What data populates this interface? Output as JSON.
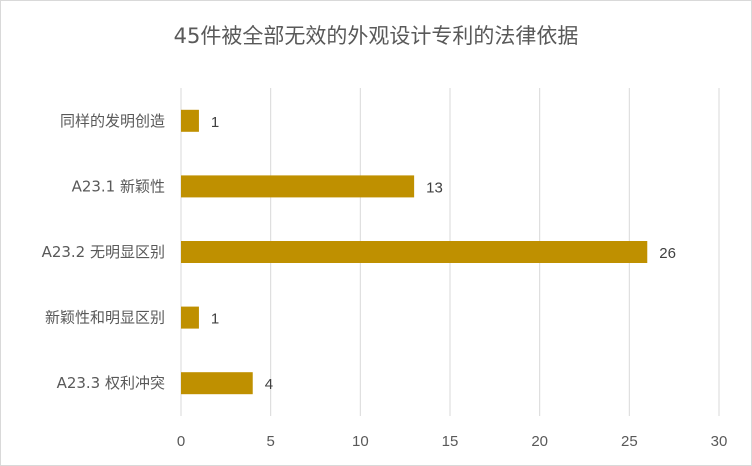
{
  "chart_data": {
    "type": "bar",
    "orientation": "horizontal",
    "title": "45件被全部无效的外观设计专利的法律依据",
    "categories": [
      "同样的发明创造",
      "A23.1 新颖性",
      "A23.2 无明显区别",
      "新颖性和明显区别",
      "A23.3 权利冲突"
    ],
    "values": [
      1,
      13,
      26,
      1,
      4
    ],
    "xlim": [
      0,
      30
    ],
    "xticks": [
      "0",
      "5",
      "10",
      "15",
      "20",
      "25",
      "30"
    ],
    "grid": true,
    "legend": "none",
    "bar_color": "#bf9000",
    "data_labels": [
      "1",
      "13",
      "26",
      "1",
      "4"
    ]
  }
}
